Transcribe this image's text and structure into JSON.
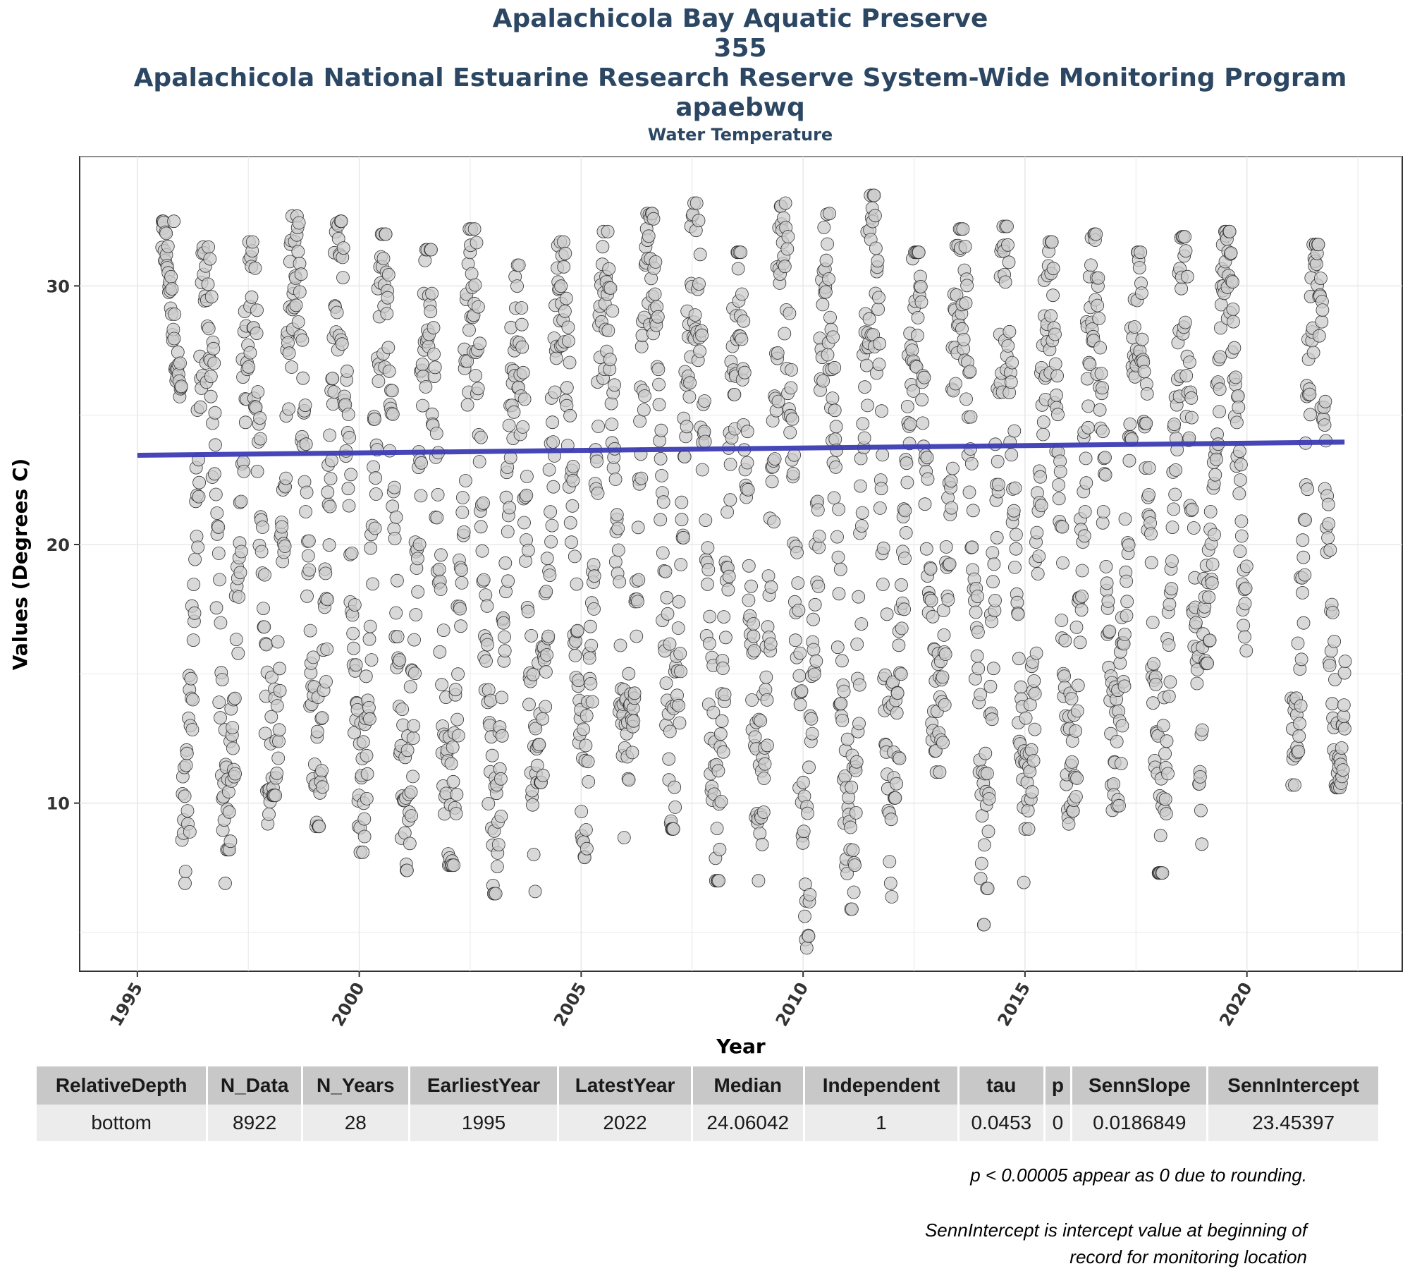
{
  "titles": {
    "line1": "Apalachicola Bay Aquatic Preserve",
    "line2": "355",
    "line3": "Apalachicola National Estuarine Research Reserve System-Wide Monitoring Program",
    "line4": "apaebwq",
    "subtitle": "Water Temperature"
  },
  "colors": {
    "title": "#2c4763",
    "point_fill": "#cccccc",
    "point_stroke": "#333333",
    "trend_line": "#3c3cb4",
    "grid": "#e8e8e8"
  },
  "chart_data": {
    "type": "scatter",
    "title": "Water Temperature",
    "xlabel": "Year",
    "ylabel": "Values (Degrees C)",
    "xlim": [
      1993.7,
      2023.5
    ],
    "ylim": [
      3.5,
      35.0
    ],
    "xticks": [
      1995,
      2000,
      2005,
      2010,
      2015,
      2020
    ],
    "yticks": [
      10,
      20,
      30
    ],
    "grid": true,
    "legend": "none",
    "series": [
      {
        "kind": "points",
        "note": "approximately 8922 points, one seasonal cycle per year",
        "yearly": [
          {
            "year": 1995,
            "min": 25.0,
            "max": 32.5
          },
          {
            "year": 1996,
            "min": 6.9,
            "max": 31.5
          },
          {
            "year": 1997,
            "min": 8.2,
            "max": 31.7
          },
          {
            "year": 1998,
            "min": 10.3,
            "max": 32.7
          },
          {
            "year": 1999,
            "min": 9.1,
            "max": 32.5
          },
          {
            "year": 2000,
            "min": 8.1,
            "max": 32.0
          },
          {
            "year": 2001,
            "min": 7.4,
            "max": 31.4
          },
          {
            "year": 2002,
            "min": 7.6,
            "max": 32.2
          },
          {
            "year": 2003,
            "min": 6.5,
            "max": 30.8
          },
          {
            "year": 2004,
            "min": 10.8,
            "max": 31.7
          },
          {
            "year": 2005,
            "min": 7.9,
            "max": 32.1
          },
          {
            "year": 2006,
            "min": 10.9,
            "max": 32.8
          },
          {
            "year": 2007,
            "min": 9.0,
            "max": 33.2
          },
          {
            "year": 2008,
            "min": 7.0,
            "max": 31.3
          },
          {
            "year": 2009,
            "min": 8.4,
            "max": 33.2
          },
          {
            "year": 2010,
            "min": 4.4,
            "max": 32.8
          },
          {
            "year": 2011,
            "min": 5.9,
            "max": 33.5
          },
          {
            "year": 2012,
            "min": 10.2,
            "max": 31.3
          },
          {
            "year": 2013,
            "min": 11.2,
            "max": 32.2
          },
          {
            "year": 2014,
            "min": 5.3,
            "max": 32.3
          },
          {
            "year": 2015,
            "min": 9.0,
            "max": 31.7
          },
          {
            "year": 2016,
            "min": 9.7,
            "max": 32.0
          },
          {
            "year": 2017,
            "min": 9.9,
            "max": 31.3
          },
          {
            "year": 2018,
            "min": 7.3,
            "max": 31.9
          },
          {
            "year": 2019,
            "min": 15.4,
            "max": 32.1
          },
          {
            "year": 2021,
            "min": 10.7,
            "max": 31.6
          },
          {
            "year": 2022,
            "min": 10.6,
            "max": 22.5
          }
        ]
      },
      {
        "kind": "trend",
        "x": [
          1995.0,
          2022.2
        ],
        "y": [
          23.45,
          23.96
        ]
      }
    ]
  },
  "table": {
    "headers": [
      "RelativeDepth",
      "N_Data",
      "N_Years",
      "EarliestYear",
      "LatestYear",
      "Median",
      "Independent",
      "tau",
      "p",
      "SennSlope",
      "SennIntercept"
    ],
    "row": [
      "bottom",
      "8922",
      "28",
      "1995",
      "2022",
      "24.06042",
      "1",
      "0.0453",
      "0",
      "0.0186849",
      "23.45397"
    ]
  },
  "notes": {
    "p_note": "p < 0.00005 appear as 0 due to rounding.",
    "intercept_note_1": "SennIntercept is intercept value at beginning of",
    "intercept_note_2": "record for monitoring location"
  }
}
